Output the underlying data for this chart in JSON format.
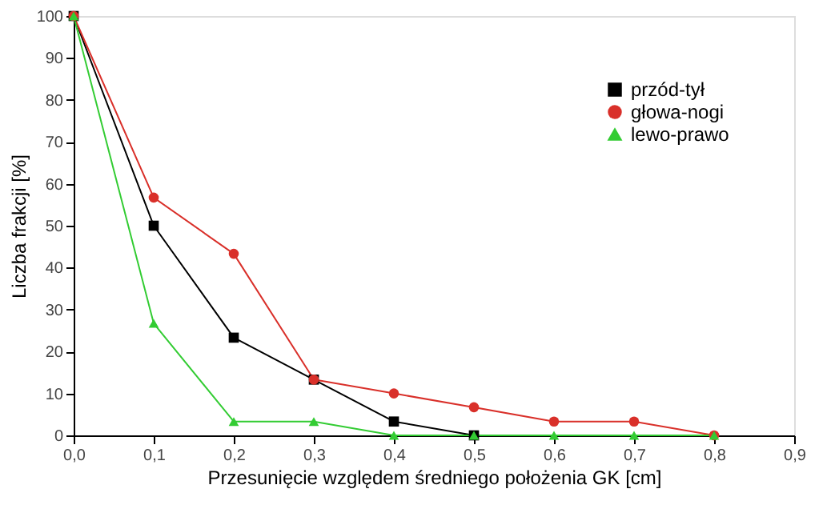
{
  "chart_data": {
    "type": "line",
    "xlabel": "Przesunięcie względem średniego położenia GK [cm]",
    "ylabel": "Liczba frakcji [%]",
    "x": [
      0,
      0.1,
      0.2,
      0.3,
      0.4,
      0.5,
      0.6,
      0.7,
      0.8
    ],
    "series": [
      {
        "name": "przód-tył",
        "color": "#000000",
        "marker": "square",
        "x": [
          0,
          0.1,
          0.2,
          0.3,
          0.4,
          0.5
        ],
        "values": [
          100,
          50,
          23.3,
          13.3,
          3.3,
          0
        ]
      },
      {
        "name": "głowa-nogi",
        "color": "#d9302a",
        "marker": "circle",
        "values": [
          100,
          56.7,
          43.3,
          13.3,
          10,
          6.7,
          3.3,
          3.3,
          0
        ]
      },
      {
        "name": "lewo-prawo",
        "color": "#33cc33",
        "marker": "triangle",
        "values": [
          100,
          26.7,
          3.3,
          3.3,
          0,
          0,
          0,
          0,
          0
        ]
      }
    ],
    "xlim": [
      0,
      0.9
    ],
    "xticks": [
      {
        "value": 0,
        "label": "0,0"
      },
      {
        "value": 0.1,
        "label": "0,1"
      },
      {
        "value": 0.2,
        "label": "0,2"
      },
      {
        "value": 0.3,
        "label": "0,3"
      },
      {
        "value": 0.4,
        "label": "0,4"
      },
      {
        "value": 0.5,
        "label": "0,5"
      },
      {
        "value": 0.6,
        "label": "0,6"
      },
      {
        "value": 0.7,
        "label": "0,7"
      },
      {
        "value": 0.8,
        "label": "0,8"
      },
      {
        "value": 0.9,
        "label": "0,9"
      }
    ],
    "ylim": [
      0,
      100
    ],
    "yticks": [
      0,
      10,
      20,
      30,
      40,
      50,
      60,
      70,
      80,
      90,
      100
    ],
    "grid": false,
    "legend": "top right",
    "line_style": "solid"
  }
}
